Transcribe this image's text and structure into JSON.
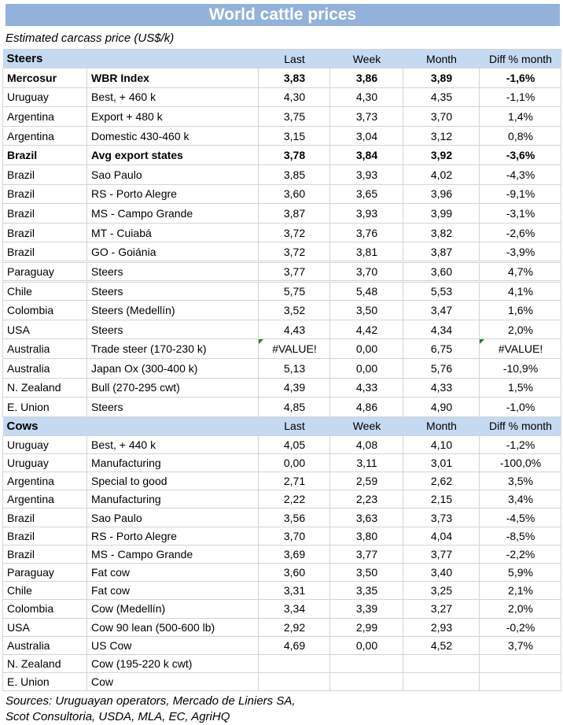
{
  "title": "World cattle prices",
  "subtitle": "Estimated carcass price (US$/k)",
  "colors": {
    "title_bg": "#92B1DB",
    "header_bg": "#C5D9F1",
    "border": "#D4D4D4",
    "error_flag": "#1E8026"
  },
  "columns": [
    "Last",
    "Week",
    "Month",
    "Diff % month"
  ],
  "sections": [
    {
      "label": "Steers",
      "rows": [
        {
          "country": "Mercosur",
          "desc": "WBR Index",
          "last": "3,83",
          "week": "3,86",
          "month": "3,89",
          "diff": "-1,6%",
          "bold": true
        },
        {
          "country": "Uruguay",
          "desc": "Best, + 460 k",
          "last": "4,30",
          "week": "4,30",
          "month": "4,35",
          "diff": "-1,1%"
        },
        {
          "country": "Argentina",
          "desc": "Export + 480 k",
          "last": "3,75",
          "week": "3,73",
          "month": "3,70",
          "diff": "1,4%"
        },
        {
          "country": "Argentina",
          "desc": "Domestic 430-460 k",
          "last": "3,15",
          "week": "3,04",
          "month": "3,12",
          "diff": "0,8%"
        },
        {
          "country": "Brazil",
          "desc": "Avg export states",
          "last": "3,78",
          "week": "3,84",
          "month": "3,92",
          "diff": "-3,6%",
          "bold": true
        },
        {
          "country": "Brazil",
          "desc": "Sao Paulo",
          "last": "3,85",
          "week": "3,93",
          "month": "4,02",
          "diff": "-4,3%"
        },
        {
          "country": "Brazil",
          "desc": "RS - Porto Alegre",
          "last": "3,60",
          "week": "3,65",
          "month": "3,96",
          "diff": "-9,1%"
        },
        {
          "country": "Brazil",
          "desc": "MS - Campo Grande",
          "last": "3,87",
          "week": "3,93",
          "month": "3,99",
          "diff": "-3,1%"
        },
        {
          "country": "Brazil",
          "desc": "MT - Cuiabá",
          "last": "3,72",
          "week": "3,76",
          "month": "3,82",
          "diff": "-2,6%"
        },
        {
          "country": "Brazil",
          "desc": "GO - Goiánia",
          "last": "3,72",
          "week": "3,81",
          "month": "3,87",
          "diff": "-3,9%",
          "group_end": true
        },
        {
          "country": "Paraguay",
          "desc": "Steers",
          "last": "3,77",
          "week": "3,70",
          "month": "3,60",
          "diff": "4,7%",
          "group_end": true
        },
        {
          "country": "Chile",
          "desc": "Steers",
          "last": "5,75",
          "week": "5,48",
          "month": "5,53",
          "diff": "4,1%"
        },
        {
          "country": "Colombia",
          "desc": "Steers (Medellín)",
          "last": "3,52",
          "week": "3,50",
          "month": "3,47",
          "diff": "1,6%"
        },
        {
          "country": "USA",
          "desc": "Steers",
          "last": "4,43",
          "week": "4,42",
          "month": "4,34",
          "diff": "2,0%"
        },
        {
          "country": "Australia",
          "desc": "Trade steer (170-230 k)",
          "last": "#VALUE!",
          "week": "0,00",
          "month": "6,75",
          "diff": "#VALUE!",
          "error_last": true,
          "error_diff": true
        },
        {
          "country": "Australia",
          "desc": "Japan Ox (300-400 k)",
          "last": "5,13",
          "week": "0,00",
          "month": "5,76",
          "diff": "-10,9%"
        },
        {
          "country": "N. Zealand",
          "desc": "Bull (270-295 cwt)",
          "last": "4,39",
          "week": "4,33",
          "month": "4,33",
          "diff": "1,5%"
        },
        {
          "country": "E. Union",
          "desc": "Steers",
          "last": "4,85",
          "week": "4,86",
          "month": "4,90",
          "diff": "-1,0%"
        }
      ]
    },
    {
      "label": "Cows",
      "rows": [
        {
          "country": "Uruguay",
          "desc": "Best, + 440 k",
          "last": "4,05",
          "week": "4,08",
          "month": "4,10",
          "diff": "-1,2%"
        },
        {
          "country": "Uruguay",
          "desc": "Manufacturing",
          "last": "0,00",
          "week": "3,11",
          "month": "3,01",
          "diff": "-100,0%"
        },
        {
          "country": "Argentina",
          "desc": "Special to good",
          "last": "2,71",
          "week": "2,59",
          "month": "2,62",
          "diff": "3,5%"
        },
        {
          "country": "Argentina",
          "desc": "Manufacturing",
          "last": "2,22",
          "week": "2,23",
          "month": "2,15",
          "diff": "3,4%"
        },
        {
          "country": "Brazil",
          "desc": "Sao Paulo",
          "last": "3,56",
          "week": "3,63",
          "month": "3,73",
          "diff": "-4,5%"
        },
        {
          "country": "Brazil",
          "desc": "RS - Porto Alegre",
          "last": "3,70",
          "week": "3,80",
          "month": "4,04",
          "diff": "-8,5%"
        },
        {
          "country": "Brazil",
          "desc": "MS - Campo Grande",
          "last": "3,69",
          "week": "3,77",
          "month": "3,77",
          "diff": "-2,2%"
        },
        {
          "country": "Paraguay",
          "desc": "Fat cow",
          "last": "3,60",
          "week": "3,50",
          "month": "3,40",
          "diff": "5,9%"
        },
        {
          "country": "Chile",
          "desc": "Fat cow",
          "last": "3,31",
          "week": "3,35",
          "month": "3,25",
          "diff": "2,1%"
        },
        {
          "country": "Colombia",
          "desc": "Cow (Medellín)",
          "last": "3,34",
          "week": "3,39",
          "month": "3,27",
          "diff": "2,0%"
        },
        {
          "country": "USA",
          "desc": "Cow 90 lean (500-600 lb)",
          "last": "2,92",
          "week": "2,99",
          "month": "2,93",
          "diff": "-0,2%"
        },
        {
          "country": "Australia",
          "desc": "US Cow",
          "last": "4,69",
          "week": "0,00",
          "month": "4,52",
          "diff": "3,7%"
        },
        {
          "country": "N. Zealand",
          "desc": "Cow (195-220 k cwt)",
          "truncated": true
        },
        {
          "country": "E. Union",
          "desc": "Cow",
          "truncated": true
        }
      ]
    }
  ],
  "sources": [
    "Sources: Uruguayan operators, Mercado de Liniers SA,",
    "Scot Consultoria, USDA, MLA, EC, AgriHQ"
  ]
}
